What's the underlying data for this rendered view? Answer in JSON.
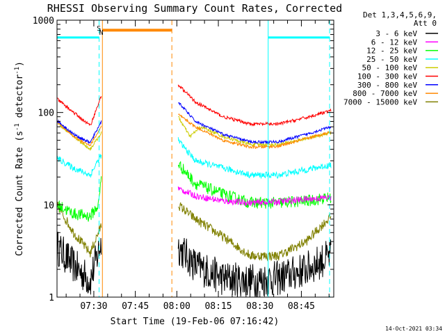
{
  "chart_data": {
    "type": "line",
    "title": "RHESSI Observing Summary Count Rates, Corrected",
    "xlabel": "Start Time (19-Feb-06 07:16:42)",
    "ylabel": "Corrected Count Rate (s⁻¹ detector⁻¹)",
    "ylabel_parts": {
      "main": "Corrected Count Rate (s",
      "exp1": "-1",
      "mid": " detector",
      "exp2": "-1",
      "end": ")"
    },
    "y_scale": "log",
    "ylim": [
      1,
      1000
    ],
    "xlim_minutes_after_start": [
      0,
      100
    ],
    "x_tick_labels": [
      {
        "label": "07:30",
        "minutes": 13.3
      },
      {
        "label": "07:45",
        "minutes": 28.3
      },
      {
        "label": "08:00",
        "minutes": 43.3
      },
      {
        "label": "08:15",
        "minutes": 58.3
      },
      {
        "label": "08:30",
        "minutes": 73.3
      },
      {
        "label": "08:45",
        "minutes": 88.3
      }
    ],
    "y_tick_labels": [
      {
        "label": "1",
        "value": 1
      },
      {
        "label": "10",
        "value": 10
      },
      {
        "label": "100",
        "value": 100
      },
      {
        "label": "1000",
        "value": 1000
      }
    ],
    "legend": {
      "placement": "right",
      "header": [
        "Det 1,3,4,5,6,9,",
        "Att 0"
      ],
      "entries": [
        {
          "label": "3 - 6 keV",
          "color": "#000000"
        },
        {
          "label": "6 - 12 keV",
          "color": "#ff00ff"
        },
        {
          "label": "12 - 25 keV",
          "color": "#00ff00"
        },
        {
          "label": "25 - 50 keV",
          "color": "#00ffff"
        },
        {
          "label": "50 - 100 keV",
          "color": "#cccc00"
        },
        {
          "label": "100 - 300 keV",
          "color": "#ff0000"
        },
        {
          "label": "300 - 800 keV",
          "color": "#0000ff"
        },
        {
          "label": "800 - 7000 keV",
          "color": "#ff8800"
        },
        {
          "label": "7000 - 15000 keV",
          "color": "#808000"
        }
      ]
    },
    "annotations": [
      {
        "text": "S",
        "minutes": 15.1,
        "color": "#ff8800"
      },
      {
        "text": "N",
        "minutes": 16.0,
        "color": "#00ffff"
      }
    ],
    "saa_bar": {
      "color": "#ff8800",
      "start_minutes": 16.4,
      "end_minutes": 41.5,
      "value": 780
    },
    "night_bars": [
      {
        "color": "#00ffff",
        "start_minutes": 0,
        "end_minutes": 15.2,
        "value": 650
      },
      {
        "color": "#00ffff",
        "start_minutes": 76.3,
        "end_minutes": 98.5,
        "value": 650
      }
    ],
    "vertical_lines": [
      {
        "minutes": 15.2,
        "color": "#00ffff",
        "style": "dashed"
      },
      {
        "minutes": 16.4,
        "color": "#ff8800",
        "style": "solid"
      },
      {
        "minutes": 41.5,
        "color": "#ff8800",
        "style": "dashed"
      },
      {
        "minutes": 76.3,
        "color": "#00ffff",
        "style": "solid"
      },
      {
        "minutes": 98.5,
        "color": "#00ffff",
        "style": "dashed"
      }
    ],
    "gap_minutes": [
      16.4,
      43.8
    ],
    "series": [
      {
        "name": "3 - 6 keV",
        "color": "#000000",
        "noise": 0.45,
        "segments": [
          {
            "x": [
              0,
              6,
              12,
              16
            ],
            "y": [
              3.5,
              2.2,
              1.5,
              4
            ]
          },
          {
            "x": [
              43.8,
              50,
              60,
              70,
              80,
              90,
              99
            ],
            "y": [
              3.5,
              2.2,
              1.6,
              1.5,
              1.6,
              2.0,
              2.8
            ]
          }
        ]
      },
      {
        "name": "6 - 12 keV",
        "color": "#ff00ff",
        "noise": 0.08,
        "segments": [
          {
            "x": [
              43.8,
              50,
              60,
              70,
              80,
              90,
              99
            ],
            "y": [
              15,
              12.5,
              11,
              10.5,
              10.8,
              11.5,
              12
            ]
          }
        ]
      },
      {
        "name": "12 - 25 keV",
        "color": "#00ff00",
        "noise": 0.15,
        "segments": [
          {
            "x": [
              0,
              6,
              12,
              15,
              16
            ],
            "y": [
              10,
              8,
              7.5,
              10,
              20
            ]
          },
          {
            "x": [
              43.8,
              50,
              60,
              70,
              80,
              90,
              99
            ],
            "y": [
              28,
              17,
              13,
              10.5,
              10.5,
              11,
              12
            ]
          }
        ]
      },
      {
        "name": "25 - 50 keV",
        "color": "#00ffff",
        "noise": 0.08,
        "segments": [
          {
            "x": [
              0,
              6,
              12,
              16
            ],
            "y": [
              32,
              25,
              21,
              35
            ]
          },
          {
            "x": [
              43.8,
              50,
              60,
              70,
              80,
              90,
              99
            ],
            "y": [
              50,
              30,
              25,
              21,
              21,
              24,
              27
            ]
          }
        ]
      },
      {
        "name": "50 - 100 keV",
        "color": "#cccc00",
        "noise": 0.04,
        "segments": [
          {
            "x": [
              0,
              6,
              12,
              16
            ],
            "y": [
              78,
              55,
              40,
              60
            ]
          },
          {
            "x": [
              43.8,
              48,
              52,
              60,
              70,
              80,
              90,
              99
            ],
            "y": [
              90,
              55,
              70,
              55,
              45,
              45,
              52,
              60
            ]
          }
        ]
      },
      {
        "name": "100 - 300 keV",
        "color": "#ff0000",
        "noise": 0.04,
        "segments": [
          {
            "x": [
              0,
              6,
              12,
              16
            ],
            "y": [
              140,
              100,
              72,
              150
            ]
          },
          {
            "x": [
              43.8,
              50,
              60,
              70,
              80,
              90,
              99
            ],
            "y": [
              200,
              130,
              90,
              75,
              75,
              88,
              105
            ]
          }
        ]
      },
      {
        "name": "300 - 800 keV",
        "color": "#0000ff",
        "noise": 0.035,
        "segments": [
          {
            "x": [
              0,
              6,
              12,
              16
            ],
            "y": [
              82,
              58,
              47,
              80
            ]
          },
          {
            "x": [
              43.8,
              50,
              60,
              70,
              80,
              90,
              99
            ],
            "y": [
              130,
              80,
              58,
              48,
              48,
              58,
              70
            ]
          }
        ]
      },
      {
        "name": "800 - 7000 keV",
        "color": "#ff8800",
        "noise": 0.035,
        "segments": [
          {
            "x": [
              0,
              6,
              12,
              16
            ],
            "y": [
              80,
              55,
              44,
              70
            ]
          },
          {
            "x": [
              43.8,
              50,
              60,
              70,
              80,
              90,
              99
            ],
            "y": [
              95,
              70,
              50,
              42,
              43,
              52,
              62
            ]
          }
        ]
      },
      {
        "name": "7000 - 15000 keV",
        "color": "#808000",
        "noise": 0.12,
        "segments": [
          {
            "x": [
              0,
              6,
              12,
              16
            ],
            "y": [
              10,
              5,
              3,
              6
            ]
          },
          {
            "x": [
              43.8,
              50,
              60,
              70,
              80,
              90,
              99
            ],
            "y": [
              10,
              7,
              4.5,
              2.8,
              2.8,
              4,
              7.5
            ]
          }
        ]
      }
    ]
  },
  "footer": {
    "timestamp": "14-Oct-2021 03:34"
  }
}
